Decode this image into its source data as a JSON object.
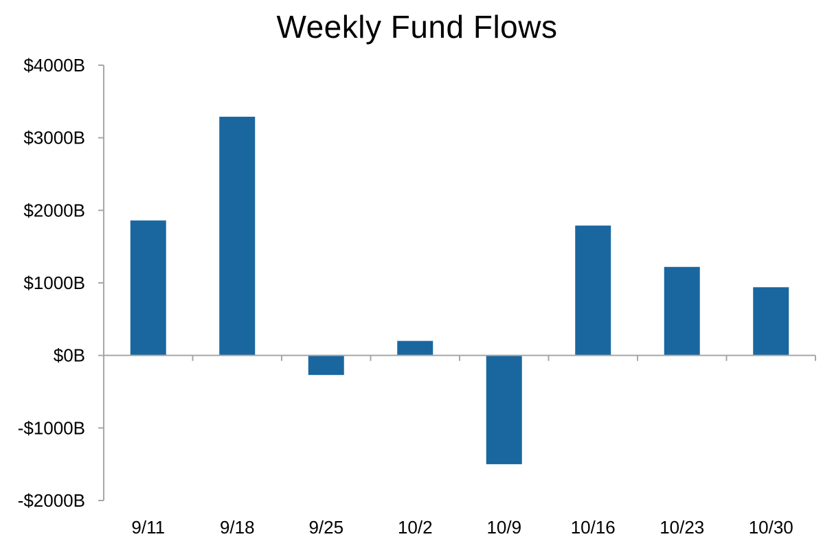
{
  "chart_data": {
    "type": "bar",
    "title": "Weekly Fund Flows",
    "xlabel": "",
    "ylabel": "",
    "categories": [
      "9/11",
      "9/18",
      "9/25",
      "10/2",
      "10/9",
      "10/16",
      "10/23",
      "10/30"
    ],
    "values": [
      1860,
      3290,
      -270,
      200,
      -1500,
      1790,
      1220,
      940
    ],
    "ylim": [
      -2000,
      4000
    ],
    "y_ticks": [
      4000,
      3000,
      2000,
      1000,
      0,
      -1000,
      -2000
    ],
    "y_tick_labels": [
      "$4000B",
      "$3000B",
      "$2000B",
      "$1000B",
      "$0B",
      "-$1000B",
      "-$2000B"
    ],
    "grid": false,
    "bar_color": "#1a67a0"
  }
}
